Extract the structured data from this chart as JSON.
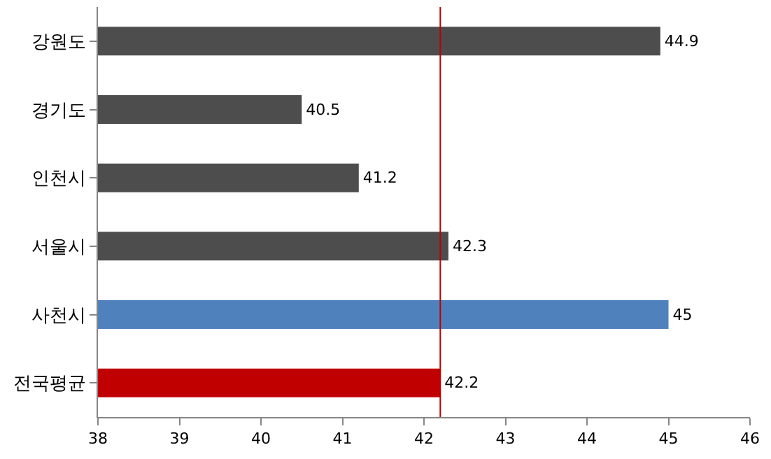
{
  "chart_data": {
    "type": "bar",
    "orientation": "horizontal",
    "categories": [
      "강원도",
      "경기도",
      "인천시",
      "서울시",
      "사천시",
      "전국평균"
    ],
    "values": [
      44.9,
      40.5,
      41.2,
      42.3,
      45,
      42.2
    ],
    "colors": [
      "#4d4d4d",
      "#4d4d4d",
      "#4d4d4d",
      "#4d4d4d",
      "#4f81bd",
      "#c00000"
    ],
    "xlim": [
      38,
      46
    ],
    "xticks": [
      38,
      39,
      40,
      41,
      42,
      43,
      44,
      45,
      46
    ],
    "data_labels": true,
    "ref_lines": [
      {
        "axis": "x",
        "value": 42.2,
        "color": "#c00000"
      }
    ]
  }
}
